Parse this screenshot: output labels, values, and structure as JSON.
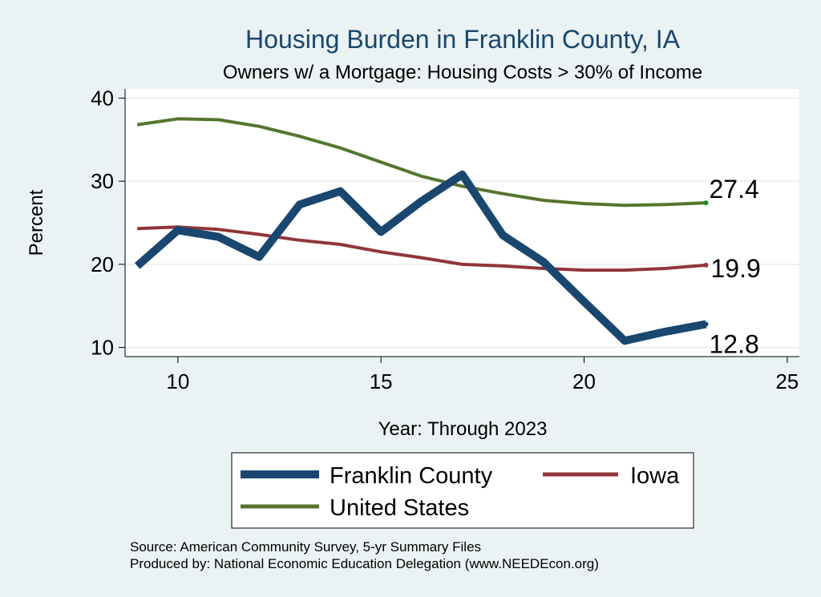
{
  "chart_data": {
    "type": "line",
    "title": "Housing Burden in Franklin County, IA",
    "subtitle": "Owners w/ a Mortgage: Housing Costs > 30% of Income",
    "xlabel": "Year: Through 2023",
    "ylabel": "Percent",
    "xlim": [
      8.7,
      25.3
    ],
    "ylim": [
      8.9,
      41.1
    ],
    "xticks": [
      10,
      15,
      20,
      25
    ],
    "yticks": [
      10,
      20,
      30,
      40
    ],
    "grid": true,
    "legend_position": "bottom",
    "series": [
      {
        "name": "Franklin County",
        "color": "#1a476f",
        "x": [
          9,
          10,
          11,
          12,
          13,
          14,
          15,
          16,
          17,
          18,
          19,
          20,
          21,
          22,
          23
        ],
        "values": [
          19.8,
          24.1,
          23.3,
          20.9,
          27.2,
          28.8,
          23.9,
          27.6,
          30.8,
          23.5,
          20.3,
          15.5,
          10.8,
          11.9,
          12.8
        ],
        "end_label": "12.8"
      },
      {
        "name": "Iowa",
        "color": "#90353b",
        "x": [
          9,
          10,
          11,
          12,
          13,
          14,
          15,
          16,
          17,
          18,
          19,
          20,
          21,
          22,
          23
        ],
        "values": [
          24.3,
          24.5,
          24.2,
          23.6,
          22.9,
          22.4,
          21.5,
          20.8,
          20.0,
          19.8,
          19.5,
          19.3,
          19.3,
          19.5,
          19.9
        ],
        "end_label": "19.9"
      },
      {
        "name": "United States",
        "color": "#55752f",
        "x": [
          9,
          10,
          11,
          12,
          13,
          14,
          15,
          16,
          17,
          18,
          19,
          20,
          21,
          22,
          23
        ],
        "values": [
          36.8,
          37.5,
          37.4,
          36.6,
          35.4,
          34.0,
          32.3,
          30.6,
          29.4,
          28.5,
          27.7,
          27.3,
          27.1,
          27.2,
          27.4
        ],
        "end_label": "27.4"
      }
    ],
    "source_note": "Source: American Community Survey, 5-yr Summary Files",
    "producer_note": "Produced by: National Economic Education Delegation (www.NEEDEcon.org)"
  },
  "colors": {
    "background": "#eaf2f3",
    "plot_background": "#ffffff",
    "title": "#1a476f",
    "grid": "#eaf2f3"
  }
}
